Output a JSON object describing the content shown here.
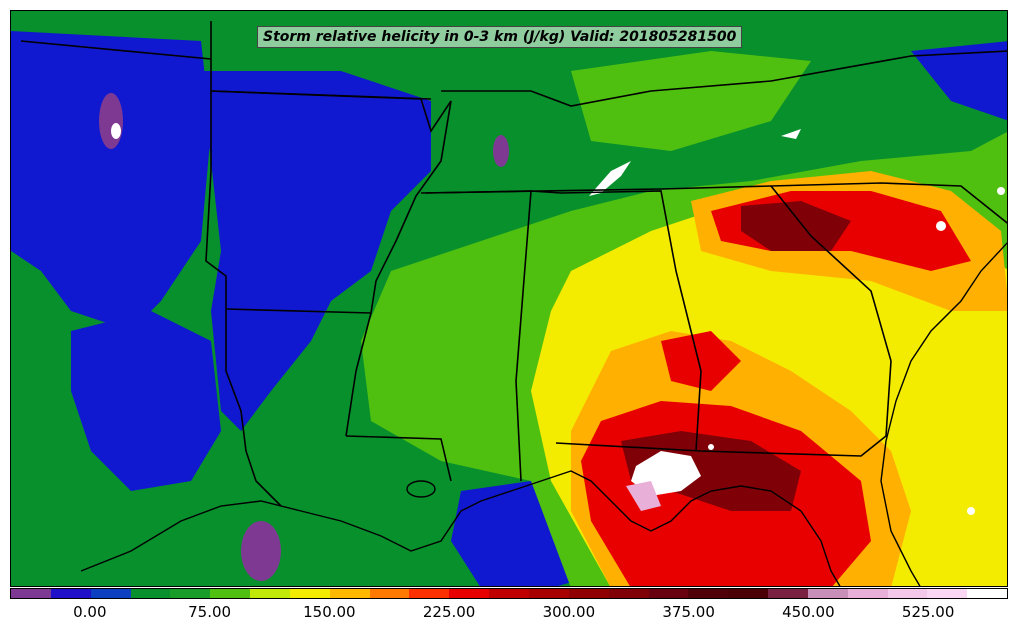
{
  "title": "Storm relative helicity in 0-3 km (J/kg) Valid: 201805281500",
  "colorbar": {
    "colors": [
      "#7e3a92",
      "#2010c8",
      "#0c40c0",
      "#08902c",
      "#189e28",
      "#50c010",
      "#c0e808",
      "#f4ec00",
      "#ffb800",
      "#ff7800",
      "#ff3000",
      "#e80000",
      "#c00000",
      "#a80000",
      "#900000",
      "#800008",
      "#680010",
      "#500008",
      "#4a0004",
      "#7a2040",
      "#c890b8",
      "#e8b0d8",
      "#f4c8e8",
      "#fad8f4",
      "#ffffff"
    ],
    "tick_labels": [
      "0.00",
      "75.00",
      "150.00",
      "225.00",
      "300.00",
      "375.00",
      "450.00",
      "525.00"
    ],
    "tick_values": [
      0,
      75,
      150,
      225,
      300,
      375,
      450,
      525
    ],
    "min": -50,
    "max": 575
  },
  "map_colors": {
    "green": "#08902c",
    "blue": "#1018d0",
    "lightgreen": "#50c010",
    "yellow": "#f4ec00",
    "orange": "#ffb000",
    "red": "#e80000",
    "darkred": "#800008",
    "white": "#ffffff",
    "purple": "#7e3a92"
  }
}
